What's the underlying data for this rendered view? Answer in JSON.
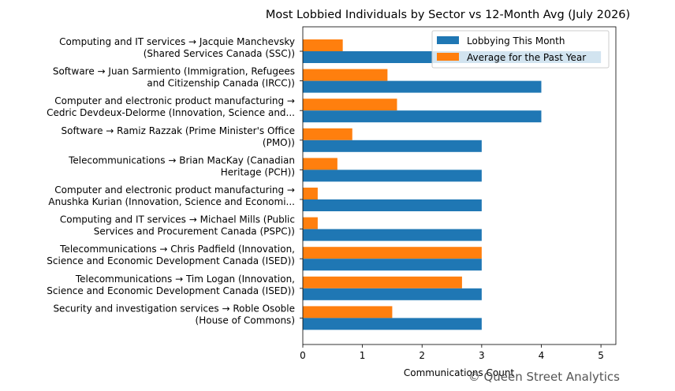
{
  "chart_data": {
    "type": "bar",
    "orientation": "horizontal",
    "title": "Most Lobbied Individuals by Sector vs 12-Month Avg (July 2026)",
    "xlabel": "Communications Count",
    "ylabel": "",
    "xlim": [
      0,
      5.25
    ],
    "xticks": [
      0,
      1,
      2,
      3,
      4,
      5
    ],
    "grid": false,
    "legend_position": "top-right",
    "categories": [
      [
        "Computing and IT services → Jacquie Manchevsky",
        "(Shared Services Canada (SSC))"
      ],
      [
        "Software → Juan Sarmiento (Immigration, Refugees",
        "and Citizenship Canada (IRCC))"
      ],
      [
        "Computer and electronic product manufacturing →",
        "Cedric Devdeux-Delorme (Innovation, Science and..."
      ],
      [
        "Software → Ramiz Razzak (Prime Minister's Office",
        "(PMO))"
      ],
      [
        "Telecommunications → Brian MacKay (Canadian",
        "Heritage (PCH))"
      ],
      [
        "Computer and electronic product manufacturing →",
        "Anushka Kurian (Innovation, Science and Economi..."
      ],
      [
        "Computing and IT services → Michael Mills (Public",
        "Services and Procurement Canada (PSPC))"
      ],
      [
        "Telecommunications → Chris Padfield (Innovation,",
        "Science and Economic Development Canada (ISED))"
      ],
      [
        "Telecommunications → Tim Logan (Innovation,",
        "Science and Economic Development Canada (ISED))"
      ],
      [
        "Security and investigation services → Roble Osoble",
        "(House of Commons)"
      ]
    ],
    "series": [
      {
        "name": "Lobbying This Month",
        "color": "#1f77b4",
        "values": [
          5,
          4,
          4,
          3,
          3,
          3,
          3,
          3,
          3,
          3
        ]
      },
      {
        "name": "Average for the Past Year",
        "color": "#ff7f0e",
        "values": [
          0.67,
          1.42,
          1.58,
          0.83,
          0.58,
          0.25,
          0.25,
          3.0,
          2.67,
          1.5
        ]
      }
    ]
  },
  "watermark": "© Queen Street Analytics"
}
